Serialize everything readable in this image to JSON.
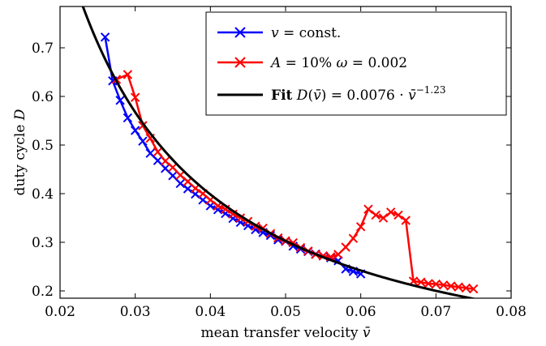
{
  "chart_data": {
    "type": "line",
    "xlabel": "mean transfer velocity v̄",
    "ylabel": "duty cycle D",
    "xlim": [
      0.02,
      0.08
    ],
    "ylim": [
      0.185,
      0.785
    ],
    "xticks": [
      0.02,
      0.03,
      0.04,
      0.05,
      0.06,
      0.07,
      0.08
    ],
    "xtick_labels": [
      "0.02",
      "0.03",
      "0.04",
      "0.05",
      "0.06",
      "0.07",
      "0.08"
    ],
    "yticks": [
      0.2,
      0.3,
      0.4,
      0.5,
      0.6,
      0.7
    ],
    "ytick_labels": [
      "0.2",
      "0.3",
      "0.4",
      "0.5",
      "0.6",
      "0.7"
    ],
    "grid": false,
    "legend_position": "top-right",
    "series": [
      {
        "name": "v = const.",
        "marker": "x",
        "color": "#0000ff",
        "x": [
          0.026,
          0.027,
          0.028,
          0.029,
          0.03,
          0.031,
          0.032,
          0.033,
          0.034,
          0.035,
          0.036,
          0.037,
          0.038,
          0.039,
          0.04,
          0.041,
          0.042,
          0.043,
          0.044,
          0.045,
          0.046,
          0.047,
          0.048,
          0.049,
          0.05,
          0.051,
          0.052,
          0.053,
          0.054,
          0.055,
          0.056,
          0.057,
          0.058,
          0.059,
          0.06
        ],
        "y": [
          0.722,
          0.632,
          0.592,
          0.556,
          0.53,
          0.508,
          0.483,
          0.468,
          0.452,
          0.437,
          0.421,
          0.41,
          0.399,
          0.387,
          0.375,
          0.367,
          0.359,
          0.349,
          0.341,
          0.334,
          0.326,
          0.32,
          0.314,
          0.305,
          0.302,
          0.292,
          0.286,
          0.281,
          0.276,
          0.272,
          0.268,
          0.262,
          0.245,
          0.24,
          0.235
        ]
      },
      {
        "name": "A = 10%  ω = 0.002",
        "marker": "x",
        "color": "#ff0000",
        "x": [
          0.0275,
          0.029,
          0.03,
          0.031,
          0.032,
          0.033,
          0.034,
          0.035,
          0.036,
          0.037,
          0.038,
          0.039,
          0.04,
          0.041,
          0.042,
          0.043,
          0.044,
          0.045,
          0.046,
          0.047,
          0.048,
          0.049,
          0.05,
          0.051,
          0.052,
          0.053,
          0.054,
          0.055,
          0.056,
          0.057,
          0.058,
          0.059,
          0.06,
          0.061,
          0.062,
          0.063,
          0.064,
          0.065,
          0.066,
          0.067,
          0.068,
          0.069,
          0.07,
          0.071,
          0.072,
          0.073,
          0.074,
          0.075
        ],
        "y": [
          0.635,
          0.645,
          0.598,
          0.54,
          0.514,
          0.486,
          0.467,
          0.454,
          0.438,
          0.425,
          0.411,
          0.4,
          0.387,
          0.375,
          0.368,
          0.358,
          0.35,
          0.343,
          0.333,
          0.329,
          0.318,
          0.309,
          0.303,
          0.299,
          0.289,
          0.282,
          0.275,
          0.272,
          0.27,
          0.275,
          0.29,
          0.308,
          0.332,
          0.368,
          0.356,
          0.35,
          0.362,
          0.356,
          0.345,
          0.22,
          0.218,
          0.215,
          0.214,
          0.212,
          0.21,
          0.208,
          0.206,
          0.204
        ]
      },
      {
        "name": "Fit D(v̄) = 0.0076 · v̄^−1.23",
        "kind": "function",
        "color": "#000000",
        "coefficient": 0.0076,
        "exponent": -1.23
      }
    ]
  }
}
